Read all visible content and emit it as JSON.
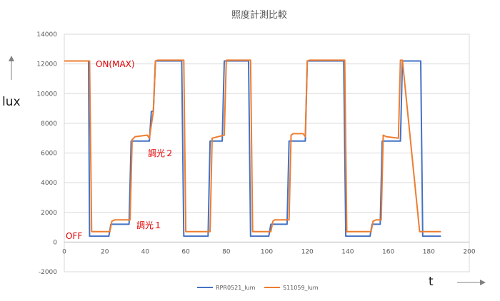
{
  "chart_data": {
    "type": "line",
    "title": "照度計測比較",
    "ylabel": "lux",
    "xlabel": "t",
    "xlim": [
      0,
      200
    ],
    "ylim": [
      -2000,
      14000
    ],
    "xticks": [
      0,
      20,
      40,
      60,
      80,
      100,
      120,
      140,
      160,
      180,
      200
    ],
    "yticks": [
      -2000,
      0,
      2000,
      4000,
      6000,
      8000,
      10000,
      12000,
      14000
    ],
    "grid": "horizontal",
    "legend_position": "bottom",
    "annotations": [
      {
        "text": "ON(MAX)",
        "x": 16,
        "y": 12000
      },
      {
        "text": "調光２",
        "x": 42,
        "y": 6000
      },
      {
        "text": "調光１",
        "x": 36,
        "y": 1000
      },
      {
        "text": "OFF",
        "x": 0,
        "y": 200
      }
    ],
    "series": [
      {
        "name": "RPR0521_lum",
        "color": "#4472c4",
        "x": [
          0,
          12,
          12.5,
          22,
          23,
          32,
          33,
          42,
          43,
          44,
          45,
          58,
          59,
          71,
          72,
          78,
          79,
          91,
          92,
          101,
          102,
          110,
          111,
          119,
          120,
          138,
          139,
          151,
          152,
          156,
          157,
          166,
          167,
          176,
          177,
          186
        ],
        "y": [
          12200,
          12200,
          400,
          400,
          1200,
          1200,
          6800,
          6800,
          8800,
          8800,
          12200,
          12200,
          400,
          400,
          6800,
          6800,
          12200,
          12200,
          400,
          400,
          1200,
          1200,
          6800,
          6800,
          12200,
          12200,
          400,
          400,
          1200,
          1200,
          6800,
          6800,
          12200,
          12200,
          400,
          400
        ]
      },
      {
        "name": "S11059_lum",
        "color": "#ed7d31",
        "x": [
          0,
          12.5,
          13.5,
          22.5,
          23.5,
          25,
          32.5,
          33.5,
          35,
          41,
          42,
          44,
          45,
          46,
          59,
          60,
          72,
          73,
          79,
          80,
          92,
          93,
          102,
          103,
          104,
          111,
          112,
          113,
          118,
          119,
          120,
          121,
          138.5,
          139.5,
          151.5,
          152.5,
          154,
          156.5,
          157.5,
          159,
          165,
          166,
          167,
          175.5,
          176.5,
          186
        ],
        "y": [
          12200,
          12200,
          700,
          700,
          1400,
          1500,
          1500,
          6900,
          7100,
          7200,
          7000,
          8800,
          12200,
          12250,
          12250,
          700,
          700,
          7000,
          7200,
          12250,
          12250,
          700,
          700,
          1400,
          1500,
          1500,
          7200,
          7300,
          7300,
          7100,
          12200,
          12250,
          12250,
          700,
          700,
          1400,
          1500,
          1500,
          7200,
          7100,
          7000,
          12250,
          12250,
          700,
          700,
          700
        ]
      }
    ]
  }
}
